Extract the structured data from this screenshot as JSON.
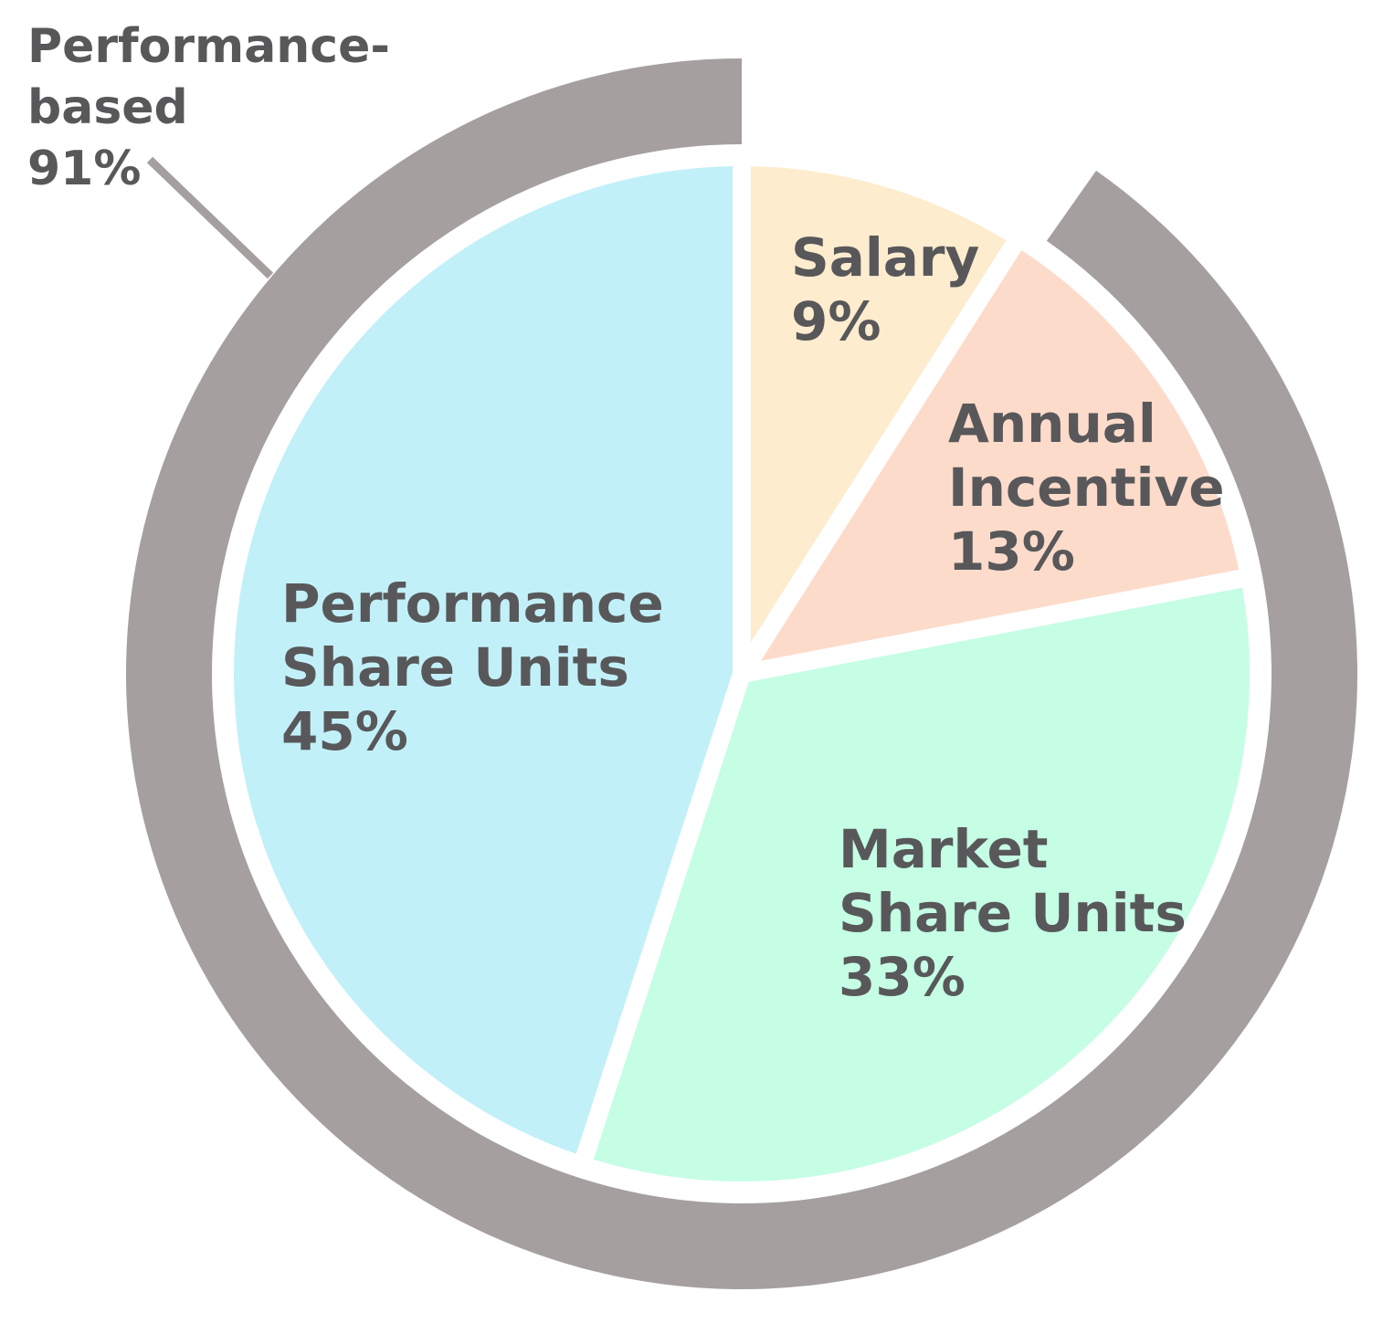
{
  "chart_data": {
    "type": "pie",
    "slices": [
      {
        "name": "Salary",
        "label_lines": [
          "Salary"
        ],
        "value": 9,
        "value_label": "9%",
        "color": "#feecce"
      },
      {
        "name": "Annual Incentive",
        "label_lines": [
          "Annual",
          "Incentive"
        ],
        "value": 13,
        "value_label": "13%",
        "color": "#fddbca"
      },
      {
        "name": "Market Share Units",
        "label_lines": [
          "Market",
          "Share Units"
        ],
        "value": 33,
        "value_label": "33%",
        "color": "#c5fde5"
      },
      {
        "name": "Performance Share Units",
        "label_lines": [
          "Performance",
          "Share Units"
        ],
        "value": 45,
        "value_label": "45%",
        "color": "#c2f0f9"
      }
    ],
    "outer_ring": {
      "label_lines": [
        "Performance-",
        "based"
      ],
      "value": 91,
      "value_label": "91%",
      "covers": [
        "Annual Incentive",
        "Market Share Units",
        "Performance Share Units"
      ],
      "color": "#a69f9f"
    },
    "start_angle": "12 o'clock",
    "direction": "clockwise",
    "text_color": "#58585a",
    "separator_color": "#ffffff",
    "leader_line_color": "#a69f9f"
  }
}
